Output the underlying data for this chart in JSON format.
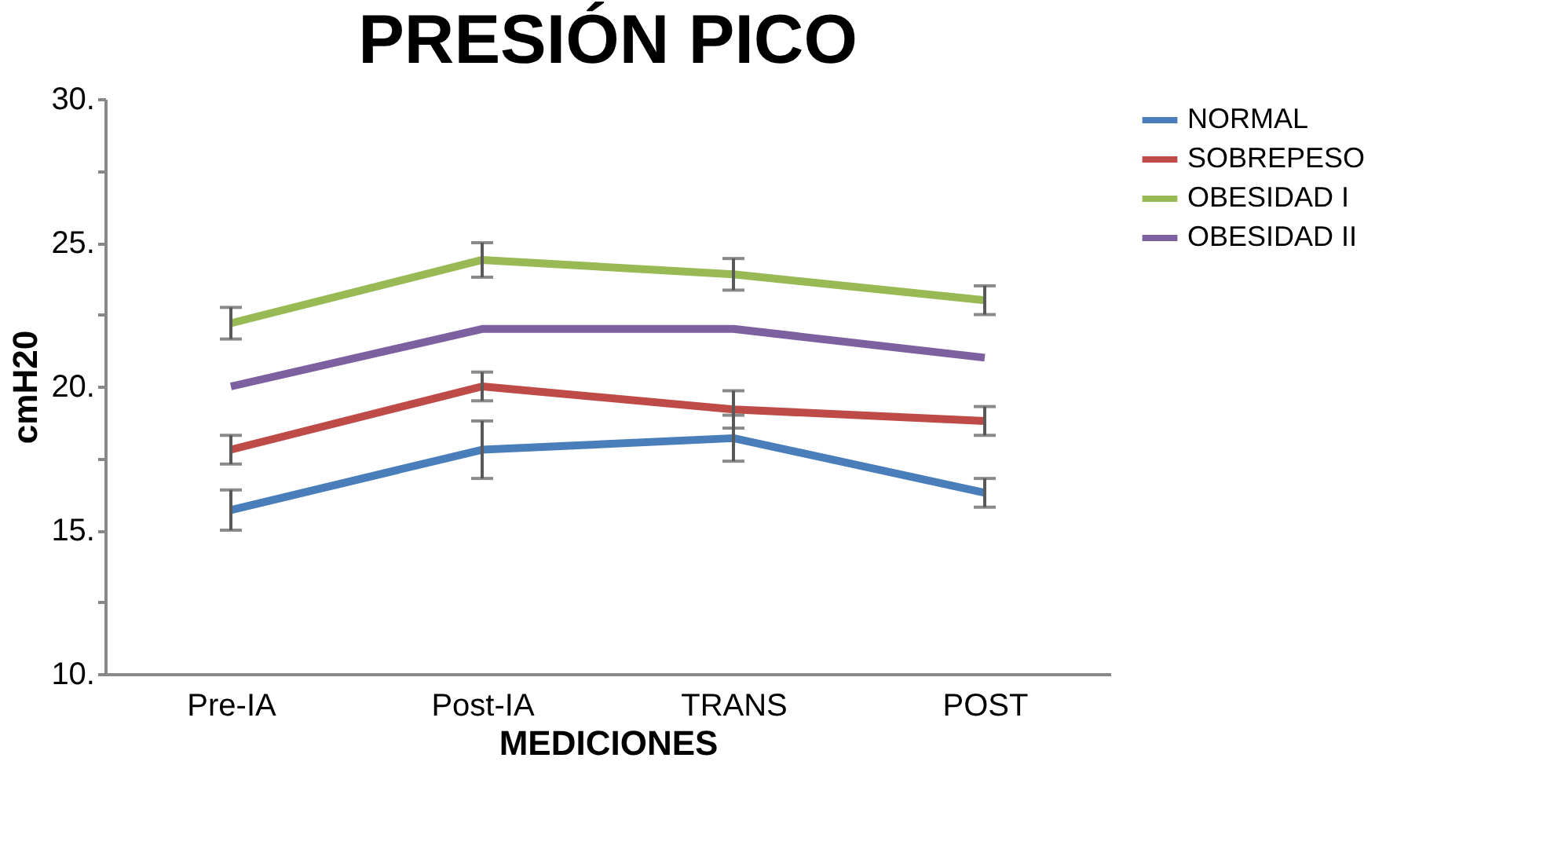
{
  "chart_data": {
    "type": "line",
    "title": "PRESIÓN PICO",
    "xlabel": "MEDICIONES",
    "ylabel": "cmH20",
    "categories": [
      "Pre-IA",
      "Post-IA",
      "TRANS",
      "POST"
    ],
    "series": [
      {
        "name": "NORMAL",
        "color": "#4a7ebb",
        "values": [
          15.7,
          17.8,
          18.2,
          16.3
        ],
        "errors": [
          0.7,
          1.0,
          0.8,
          0.5
        ]
      },
      {
        "name": "SOBREPESO",
        "color": "#be4b48",
        "values": [
          17.8,
          20.0,
          19.2,
          18.8
        ],
        "errors": [
          0.5,
          0.5,
          0.65,
          0.5
        ]
      },
      {
        "name": "OBESIDAD I",
        "color": "#98b954",
        "values": [
          22.2,
          24.4,
          23.9,
          23.0
        ],
        "errors": [
          0.55,
          0.6,
          0.55,
          0.5
        ]
      },
      {
        "name": "OBESIDAD II",
        "color": "#7d60a0",
        "values": [
          20.0,
          22.0,
          22.0,
          21.0
        ],
        "errors": [
          null,
          null,
          null,
          null
        ]
      }
    ],
    "ylim": [
      10,
      30
    ],
    "yticks": [
      {
        "value": 10,
        "label": "10."
      },
      {
        "value": 12.5,
        "label": null
      },
      {
        "value": 15,
        "label": "15."
      },
      {
        "value": 17.5,
        "label": null
      },
      {
        "value": 20,
        "label": "20."
      },
      {
        "value": 22.5,
        "label": null
      },
      {
        "value": 25,
        "label": "25."
      },
      {
        "value": 27.5,
        "label": null
      },
      {
        "value": 30,
        "label": "30."
      }
    ],
    "grid": false,
    "legend": "right",
    "marker": "none",
    "line_style": "solid"
  }
}
